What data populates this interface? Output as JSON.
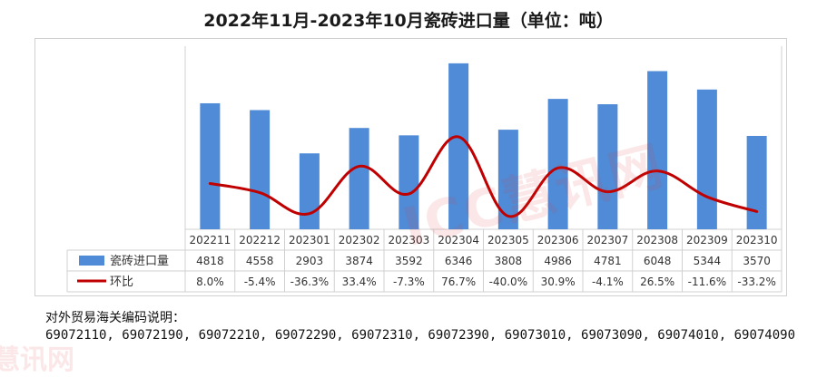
{
  "title": "2022年11月-2023年10月瓷砖进口量（单位：吨）",
  "watermark": "ICC慧讯网",
  "watermark_small": "慧讯网",
  "footnote": {
    "title": "对外贸易海关编码说明：",
    "codes": "69072110, 69072190, 69072210, 69072290, 69072310, 69072390, 69073010, 69073090, 69074010, 69074090"
  },
  "colors": {
    "bar": "#4f8bd6",
    "line": "#c00000",
    "grid": "#d0d0d0"
  },
  "chart_data": {
    "type": "bar",
    "categories": [
      "202211",
      "202212",
      "202301",
      "202302",
      "202303",
      "202304",
      "202305",
      "202306",
      "202307",
      "202308",
      "202309",
      "202310"
    ],
    "series": [
      {
        "name": "瓷砖进口量",
        "type": "bar",
        "axis": "left",
        "values": [
          4818,
          4558,
          2903,
          3874,
          3592,
          6346,
          3808,
          4986,
          4781,
          6048,
          5344,
          3570
        ],
        "labels": [
          "4818",
          "4558",
          "2903",
          "3874",
          "3592",
          "6346",
          "3808",
          "4986",
          "4781",
          "6048",
          "5344",
          "3570"
        ]
      },
      {
        "name": "环比",
        "type": "line",
        "axis": "right",
        "values": [
          8.0,
          -5.4,
          -36.3,
          33.4,
          -7.3,
          76.7,
          -40.0,
          30.9,
          -4.1,
          26.5,
          -11.6,
          -33.2
        ],
        "labels": [
          "8.0%",
          "-5.4%",
          "-36.3%",
          "33.4%",
          "-7.3%",
          "76.7%",
          "-40.0%",
          "30.9%",
          "-4.1%",
          "26.5%",
          "-11.6%",
          "-33.2%"
        ]
      }
    ],
    "data_table": true,
    "legend": "in-table"
  }
}
